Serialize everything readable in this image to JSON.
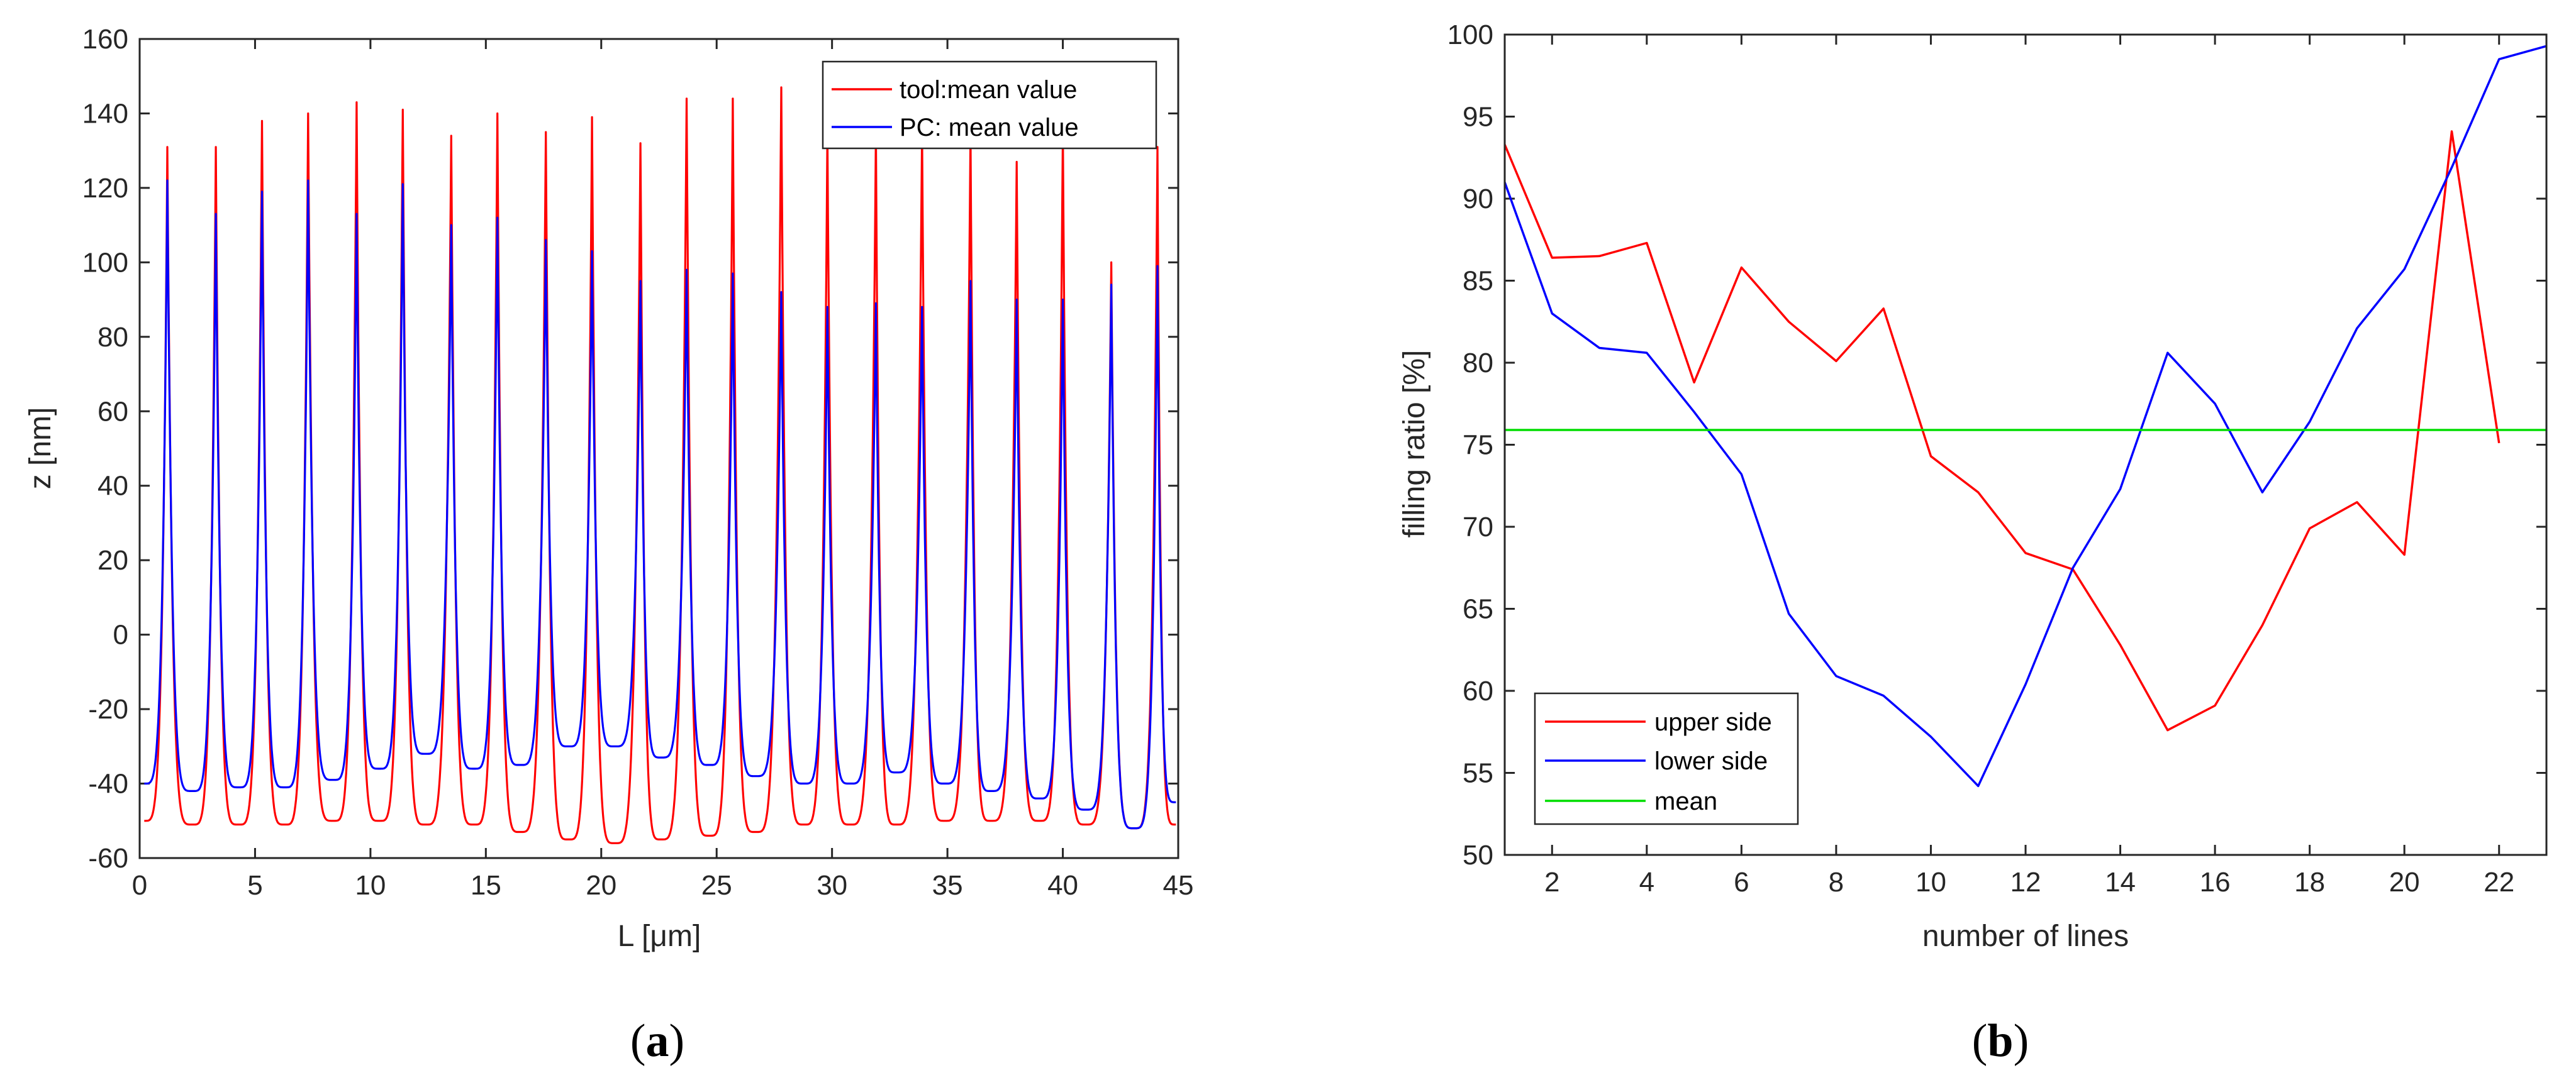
{
  "chart_data": [
    {
      "type": "line",
      "panel_label": "(a)",
      "panel_letter": "a",
      "xlabel": "L [μm]",
      "ylabel": "z  [nm]",
      "xlim": [
        0,
        45
      ],
      "ylim": [
        -60,
        160
      ],
      "xticks": [
        0,
        5,
        10,
        15,
        20,
        25,
        30,
        35,
        40,
        45
      ],
      "yticks": [
        -60,
        -40,
        -20,
        0,
        20,
        40,
        60,
        80,
        100,
        120,
        140,
        160
      ],
      "grid": false,
      "legend_position": "top-right",
      "series": [
        {
          "name": "tool:mean value",
          "color": "#ff0000",
          "peaks_x": [
            1.2,
            3.3,
            5.3,
            7.3,
            9.4,
            11.4,
            13.5,
            15.5,
            17.6,
            19.6,
            21.7,
            23.7,
            25.7,
            27.8,
            29.8,
            31.9,
            33.9,
            36.0,
            38.0,
            40.0,
            42.1,
            44.1
          ],
          "peaks_y": [
            131,
            131,
            138,
            140,
            143,
            141,
            134,
            140,
            135,
            139,
            132,
            144,
            144,
            147,
            135,
            135,
            135,
            135,
            127,
            135,
            100,
            131
          ],
          "troughs_x": [
            0.2,
            2.3,
            4.3,
            6.3,
            8.4,
            10.4,
            12.4,
            14.5,
            16.5,
            18.6,
            20.6,
            22.6,
            24.7,
            26.7,
            28.8,
            30.8,
            32.8,
            34.9,
            36.9,
            39.0,
            41.0,
            43.1,
            44.9
          ],
          "troughs_y": [
            -50,
            -51,
            -51,
            -51,
            -50,
            -50,
            -51,
            -51,
            -53,
            -55,
            -56,
            -55,
            -54,
            -53,
            -51,
            -51,
            -51,
            -50,
            -50,
            -50,
            -51,
            -52,
            -51
          ]
        },
        {
          "name": "PC: mean value",
          "color": "#0000ff",
          "peaks_x": [
            1.2,
            3.3,
            5.3,
            7.3,
            9.4,
            11.4,
            13.5,
            15.5,
            17.6,
            19.6,
            21.7,
            23.7,
            25.7,
            27.8,
            29.8,
            31.9,
            33.9,
            36.0,
            38.0,
            40.0,
            42.1,
            44.1
          ],
          "peaks_y": [
            122,
            113,
            119,
            122,
            113,
            121,
            110,
            112,
            106,
            103,
            95,
            98,
            97,
            92,
            88,
            89,
            88,
            95,
            90,
            90,
            94,
            99
          ],
          "troughs_x": [
            0.2,
            2.3,
            4.3,
            6.3,
            8.4,
            10.4,
            12.4,
            14.5,
            16.5,
            18.6,
            20.6,
            22.6,
            24.7,
            26.7,
            28.8,
            30.8,
            32.8,
            34.9,
            36.9,
            39.0,
            41.0,
            43.1,
            44.9
          ],
          "troughs_y": [
            -40,
            -42,
            -41,
            -41,
            -39,
            -36,
            -32,
            -36,
            -35,
            -30,
            -30,
            -33,
            -35,
            -38,
            -40,
            -40,
            -37,
            -40,
            -42,
            -44,
            -47,
            -52,
            -45
          ]
        }
      ]
    },
    {
      "type": "line",
      "panel_label": "(b)",
      "panel_letter": "b",
      "xlabel": "number of lines",
      "ylabel": "filling ratio [%]",
      "xlim": [
        1,
        23
      ],
      "ylim": [
        50,
        100
      ],
      "xticks": [
        2,
        4,
        6,
        8,
        10,
        12,
        14,
        16,
        18,
        20,
        22
      ],
      "yticks": [
        50,
        55,
        60,
        65,
        70,
        75,
        80,
        85,
        90,
        95,
        100
      ],
      "grid": false,
      "legend_position": "bottom-left",
      "series": [
        {
          "name": "upper side",
          "color": "#ff0000",
          "x": [
            1,
            2,
            3,
            4,
            5,
            6,
            7,
            8,
            9,
            10,
            11,
            12,
            13,
            14,
            15,
            16,
            17,
            18,
            19,
            20,
            21,
            22
          ],
          "values": [
            93.3,
            86.4,
            86.5,
            87.3,
            78.8,
            85.8,
            82.5,
            80.1,
            83.3,
            74.3,
            72.1,
            68.4,
            67.4,
            62.8,
            57.6,
            59.1,
            64.0,
            69.9,
            71.5,
            68.3,
            94.1,
            75.1
          ]
        },
        {
          "name": "lower side",
          "color": "#0000ff",
          "x": [
            1,
            2,
            3,
            4,
            5,
            6,
            7,
            8,
            9,
            10,
            11,
            12,
            13,
            14,
            15,
            16,
            17,
            18,
            19,
            20,
            21,
            22,
            23
          ],
          "values": [
            91.0,
            83.0,
            80.9,
            80.6,
            77.0,
            73.2,
            64.7,
            60.9,
            59.7,
            57.2,
            54.2,
            60.4,
            67.5,
            72.3,
            80.6,
            77.5,
            72.1,
            76.4,
            82.1,
            85.7,
            91.9,
            98.5,
            99.3
          ]
        },
        {
          "name": "mean",
          "color": "#00dd00",
          "x": [
            1,
            23
          ],
          "values": [
            75.9,
            75.9
          ]
        }
      ]
    }
  ]
}
